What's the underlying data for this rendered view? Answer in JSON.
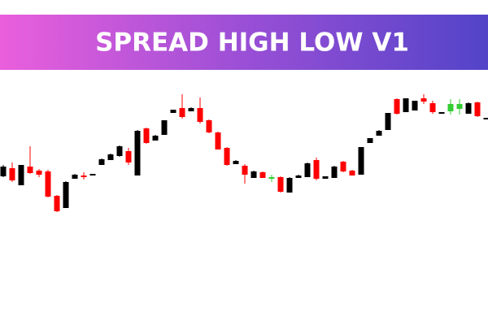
{
  "chart_data": {
    "type": "candlestick",
    "title": "SPREAD HIGH LOW V1",
    "ylim": [
      0,
      160
    ],
    "open": [
      53,
      63,
      42,
      65,
      60,
      59,
      29,
      14,
      50,
      54,
      54,
      67,
      73,
      78,
      84,
      54,
      112,
      97,
      104,
      131,
      137,
      133,
      137,
      122,
      107,
      88,
      68,
      66,
      51,
      58,
      52,
      52,
      33,
      51,
      52,
      73,
      50,
      51,
      71,
      60,
      55,
      94,
      103,
      110,
      148,
      132,
      134,
      149,
      143,
      130,
      142,
      142,
      130,
      144,
      123
    ],
    "high": [
      67,
      70,
      67,
      90,
      62,
      61,
      30,
      47,
      56,
      58,
      56,
      75,
      81,
      91,
      88,
      110,
      113,
      104,
      122,
      135,
      154,
      138,
      150,
      123,
      108,
      89,
      73,
      68,
      60,
      59,
      55,
      53,
      52,
      55,
      70,
      76,
      53,
      66,
      72,
      61,
      89,
      100,
      110,
      131,
      149,
      149,
      146,
      154,
      146,
      132,
      148,
      148,
      144,
      145,
      125
    ],
    "low": [
      52,
      46,
      42,
      56,
      52,
      27,
      9,
      14,
      50,
      49,
      54,
      67,
      73,
      77,
      67,
      54,
      93,
      97,
      104,
      131,
      124,
      133,
      118,
      106,
      86,
      66,
      68,
      44,
      51,
      51,
      46,
      33,
      33,
      51,
      52,
      48,
      50,
      51,
      58,
      54,
      55,
      94,
      103,
      110,
      129,
      132,
      134,
      142,
      130,
      130,
      129,
      129,
      130,
      126,
      123
    ],
    "close": [
      65,
      48,
      67,
      57,
      55,
      28,
      10,
      46,
      55,
      52,
      56,
      74,
      80,
      90,
      70,
      109,
      94,
      103,
      122,
      135,
      126,
      137,
      120,
      107,
      86,
      67,
      72,
      55,
      59,
      51,
      50,
      34,
      51,
      54,
      69,
      50,
      53,
      65,
      59,
      54,
      89,
      100,
      109,
      131,
      130,
      149,
      146,
      145,
      132,
      132,
      133,
      136,
      143,
      127,
      125
    ],
    "colors": [
      "#000000",
      "#ff0000",
      "#000000",
      "#ff0000",
      "#ff0000",
      "#ff0000",
      "#ff0000",
      "#000000",
      "#000000",
      "#ff0000",
      "#000000",
      "#000000",
      "#000000",
      "#000000",
      "#ff0000",
      "#000000",
      "#ff0000",
      "#000000",
      "#000000",
      "#000000",
      "#ff0000",
      "#000000",
      "#ff0000",
      "#ff0000",
      "#ff0000",
      "#ff0000",
      "#000000",
      "#ff0000",
      "#000000",
      "#ff0000",
      "#33cc33",
      "#ff0000",
      "#000000",
      "#000000",
      "#000000",
      "#ff0000",
      "#000000",
      "#000000",
      "#ff0000",
      "#ff0000",
      "#000000",
      "#000000",
      "#000000",
      "#000000",
      "#ff0000",
      "#000000",
      "#000000",
      "#ff0000",
      "#ff0000",
      "#000000",
      "#33cc33",
      "#33cc33",
      "#000000",
      "#ff0000",
      "#000000"
    ]
  }
}
